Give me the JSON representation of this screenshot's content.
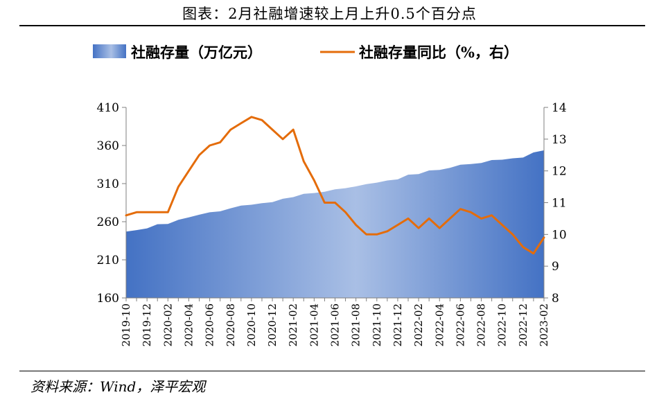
{
  "header": {
    "title": "图表：2月社融增速较上月上升0.5个百分点"
  },
  "footer": {
    "source": "资料来源：Wind，泽平宏观"
  },
  "colors": {
    "area_dark": "#4472c4",
    "area_light": "#a9bfe5",
    "line": "#e46c0a",
    "axis": "#7f7f7f"
  },
  "chart_data": {
    "type": "area+line",
    "legend": {
      "placement": "top",
      "area_label": "社融存量（万亿元）",
      "line_label": "社融存量同比（%，右）"
    },
    "x": [
      "2019-10",
      "2019-11",
      "2019-12",
      "2020-01",
      "2020-02",
      "2020-03",
      "2020-04",
      "2020-05",
      "2020-06",
      "2020-07",
      "2020-08",
      "2020-09",
      "2020-10",
      "2020-11",
      "2020-12",
      "2021-01",
      "2021-02",
      "2021-03",
      "2021-04",
      "2021-05",
      "2021-06",
      "2021-07",
      "2021-08",
      "2021-09",
      "2021-10",
      "2021-11",
      "2021-12",
      "2022-01",
      "2022-02",
      "2022-03",
      "2022-04",
      "2022-05",
      "2022-06",
      "2022-07",
      "2022-08",
      "2022-09",
      "2022-10",
      "2022-11",
      "2022-12",
      "2023-01",
      "2023-02"
    ],
    "x_tick_labels": [
      "2019-10",
      "2019-12",
      "2020-02",
      "2020-04",
      "2020-06",
      "2020-08",
      "2020-10",
      "2020-12",
      "2021-02",
      "2021-04",
      "2021-06",
      "2021-08",
      "2021-10",
      "2021-12",
      "2022-02",
      "2022-04",
      "2022-06",
      "2022-08",
      "2022-10",
      "2022-12",
      "2023-02"
    ],
    "series": [
      {
        "name": "社融存量（万亿元）",
        "axis": "left",
        "kind": "area",
        "values": [
          247.0,
          249.0,
          251.3,
          256.7,
          257.0,
          262.5,
          265.7,
          269.2,
          272.4,
          273.6,
          277.6,
          281.2,
          282.3,
          284.3,
          285.7,
          290.1,
          292.3,
          296.6,
          297.6,
          299.4,
          302.5,
          304.0,
          306.4,
          309.3,
          311.3,
          314.1,
          315.5,
          321.7,
          322.5,
          327.3,
          327.9,
          330.6,
          334.7,
          335.6,
          337.0,
          340.9,
          341.4,
          343.2,
          344.2,
          350.9,
          353.6
        ]
      },
      {
        "name": "社融存量同比（%，右）",
        "axis": "right",
        "kind": "line",
        "values": [
          10.6,
          10.7,
          10.7,
          10.7,
          10.7,
          11.5,
          12.0,
          12.5,
          12.8,
          12.9,
          13.3,
          13.5,
          13.7,
          13.6,
          13.3,
          13.0,
          13.3,
          12.3,
          11.7,
          11.0,
          11.0,
          10.7,
          10.3,
          10.0,
          10.0,
          10.1,
          10.3,
          10.5,
          10.2,
          10.5,
          10.2,
          10.5,
          10.8,
          10.7,
          10.5,
          10.6,
          10.3,
          10.0,
          9.6,
          9.4,
          9.9
        ]
      }
    ],
    "y_left": {
      "min": 160,
      "max": 410,
      "ticks": [
        160,
        210,
        260,
        310,
        360,
        410
      ]
    },
    "y_right": {
      "min": 8,
      "max": 14,
      "ticks": [
        8,
        9,
        10,
        11,
        12,
        13,
        14
      ]
    },
    "grid": false
  }
}
